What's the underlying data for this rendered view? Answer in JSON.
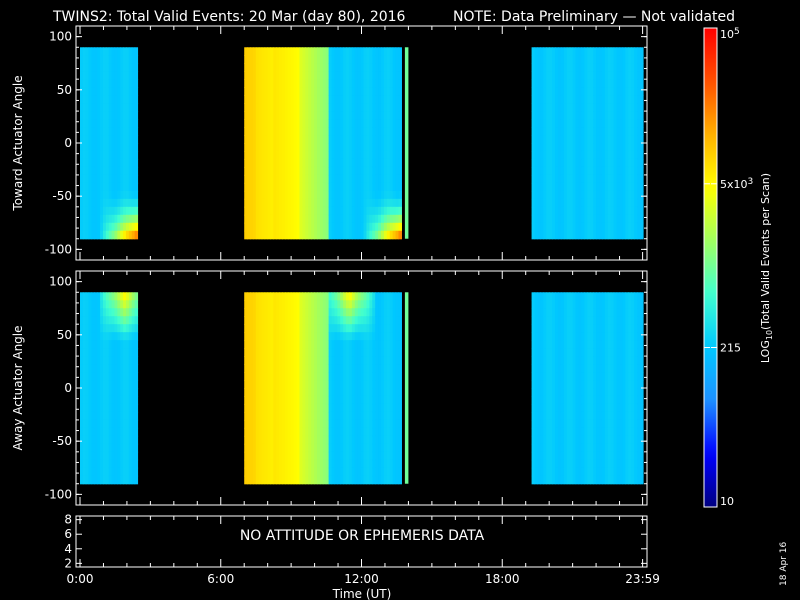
{
  "title": "TWINS2: Total Valid Events: 20 Mar (day  80), 2016",
  "note": "NOTE: Data Preliminary — Not validated",
  "note_color": "#ff2020",
  "footer_date": "18 Apr 16",
  "chart_data": [
    {
      "type": "heatmap",
      "panel": "toward",
      "ylabel": "Toward Actuator Angle",
      "xlim": [
        0,
        24
      ],
      "ylim": [
        -110,
        110
      ],
      "yticks": [
        100,
        50,
        0,
        -50,
        -100
      ],
      "ytick_labels": [
        "100",
        "50",
        "0",
        "-50",
        "-100"
      ],
      "data_angle_range": [
        -90,
        90
      ],
      "coverage_intervals_ut_hours": [
        [
          0.0,
          2.45
        ],
        [
          7.0,
          13.7
        ],
        [
          13.85,
          14.0
        ],
        [
          19.25,
          24.0
        ]
      ],
      "log10_counts_description": "background ~2.3-2.6; enhanced ~3.8-4.4 near -90 deg at 1-2.4h and 11-13.7h; 7.0-10.5h band ~3.7-4.0"
    },
    {
      "type": "heatmap",
      "panel": "away",
      "ylabel": "Away Actuator Angle",
      "xlim": [
        0,
        24
      ],
      "ylim": [
        -110,
        110
      ],
      "yticks": [
        100,
        50,
        0,
        -50,
        -100
      ],
      "ytick_labels": [
        "100",
        "50",
        "0",
        "-50",
        "-100"
      ],
      "data_angle_range": [
        -90,
        90
      ],
      "coverage_intervals_ut_hours": [
        [
          0.0,
          2.45
        ],
        [
          7.0,
          13.7
        ],
        [
          13.85,
          14.0
        ],
        [
          19.25,
          24.0
        ]
      ],
      "log10_counts_description": "background ~2.3-2.6; enhanced ~3.6-3.9 near +90 deg at 1-2.4h and 10.5-12.5h; 7.0-10.5h band ~3.7-4.0"
    },
    {
      "type": "line",
      "panel": "ephemeris",
      "ylim": [
        1.5,
        8.5
      ],
      "yticks": [
        8,
        6,
        4,
        2
      ],
      "ytick_labels": [
        "8",
        "6",
        "4",
        "2"
      ],
      "message": "NO ATTITUDE OR EPHEMERIS DATA"
    }
  ],
  "xaxis": {
    "label": "Time (UT)",
    "ticks": [
      0,
      6,
      12,
      18,
      23.983
    ],
    "tick_labels": [
      "0:00",
      "6:00",
      "12:00",
      "18:00",
      "23:59"
    ]
  },
  "colorbar": {
    "label": "LOG10(Total Valid Events per Scan)",
    "label_main": "LOG",
    "label_sub": "10",
    "label_rest": "(Total Valid  Events  per Scan)",
    "range_log10": [
      1,
      5
    ],
    "ticks": [
      {
        "value": 5.0,
        "base": "10",
        "sup": "5"
      },
      {
        "value": 3.699,
        "base": "5x10",
        "sup": "3"
      },
      {
        "value": 2.332,
        "base": "215",
        "sup": ""
      },
      {
        "value": 1.0,
        "base": "10",
        "sup": ""
      }
    ],
    "colors": [
      "#000080",
      "#0000ff",
      "#1e90ff",
      "#00c8ff",
      "#40ffd0",
      "#a0ff60",
      "#ffff00",
      "#ffb000",
      "#ff5000",
      "#ff0000"
    ]
  }
}
